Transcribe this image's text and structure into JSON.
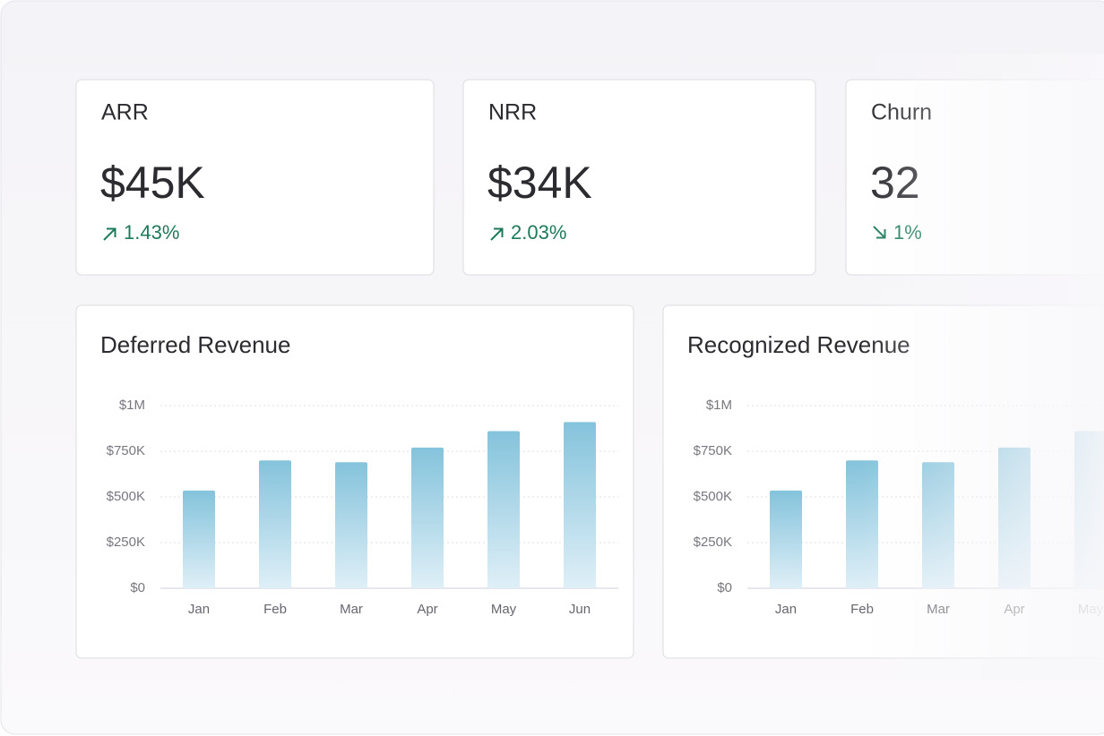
{
  "metrics": [
    {
      "label": "ARR",
      "value": "$45K",
      "change": "1.43%",
      "trend": "up"
    },
    {
      "label": "NRR",
      "value": "$34K",
      "change": "2.03%",
      "trend": "up"
    },
    {
      "label": "Churn",
      "value": "32",
      "change": "1%",
      "trend": "down"
    }
  ],
  "chart_data": [
    {
      "type": "bar",
      "title": "Deferred Revenue",
      "categories": [
        "Jan",
        "Feb",
        "Mar",
        "Apr",
        "May",
        "Jun"
      ],
      "values": [
        535000,
        700000,
        690000,
        770000,
        860000,
        910000
      ],
      "ylim": [
        0,
        1000000
      ],
      "yticks": [
        {
          "value": 0,
          "label": "$0"
        },
        {
          "value": 250000,
          "label": "$250K"
        },
        {
          "value": 500000,
          "label": "$500K"
        },
        {
          "value": 750000,
          "label": "$750K"
        },
        {
          "value": 1000000,
          "label": "$1M"
        }
      ],
      "grid": true
    },
    {
      "type": "bar",
      "title": "Recognized Revenue",
      "categories": [
        "Jan",
        "Feb",
        "Mar",
        "Apr",
        "May"
      ],
      "values": [
        535000,
        700000,
        690000,
        770000,
        860000
      ],
      "ylim": [
        0,
        1000000
      ],
      "yticks": [
        {
          "value": 0,
          "label": "$0"
        },
        {
          "value": 250000,
          "label": "$250K"
        },
        {
          "value": 500000,
          "label": "$500K"
        },
        {
          "value": 750000,
          "label": "$750K"
        },
        {
          "value": 1000000,
          "label": "$1M"
        }
      ],
      "grid": true
    }
  ]
}
